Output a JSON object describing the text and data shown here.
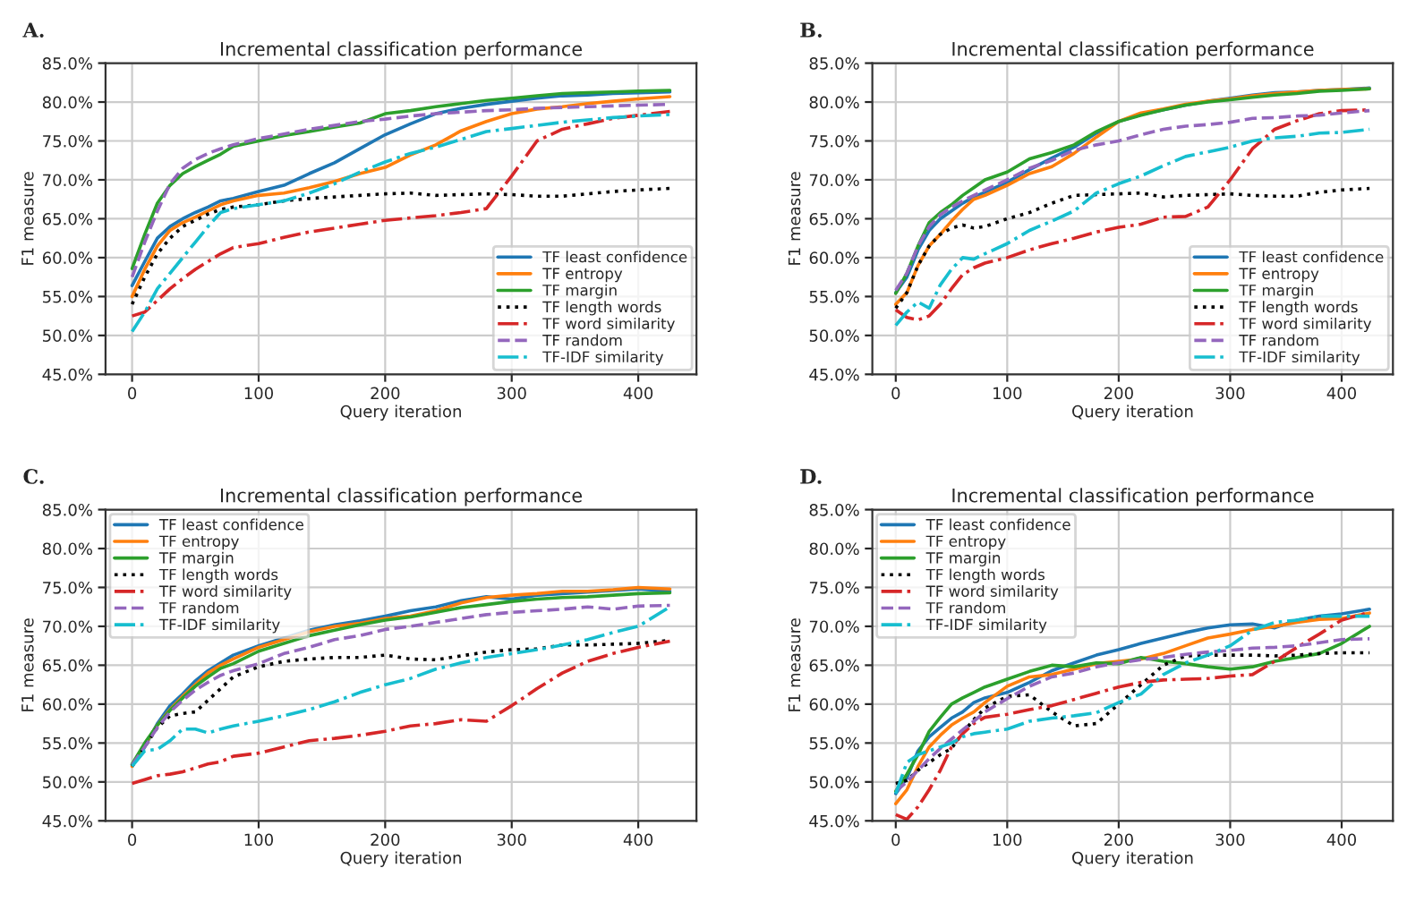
{
  "chart_data": [
    {
      "type": "line",
      "title": "Incremental classification performance",
      "xlabel": "Query iteration",
      "ylabel": "F1 measure",
      "annotations": [
        "A."
      ],
      "legend": "bottom right",
      "grid": true,
      "xlim": [
        -21,
        446
      ],
      "xticks": [
        0,
        100,
        200,
        300,
        400
      ],
      "ylim": [
        45,
        85
      ],
      "yticks": [
        {
          "value": 45,
          "label": "45.0%"
        },
        {
          "value": 50,
          "label": "50.0%"
        },
        {
          "value": 55,
          "label": "55.0%"
        },
        {
          "value": 60,
          "label": "60.0%"
        },
        {
          "value": 65,
          "label": "65.0%"
        },
        {
          "value": 70,
          "label": "70.0%"
        },
        {
          "value": 75,
          "label": "75.0%"
        },
        {
          "value": 80,
          "label": "80.0%"
        },
        {
          "value": 85,
          "label": "85.0%"
        }
      ],
      "x": [
        0,
        10,
        20,
        30,
        40,
        50,
        60,
        70,
        80,
        100,
        120,
        140,
        160,
        180,
        200,
        220,
        240,
        260,
        280,
        300,
        320,
        340,
        360,
        380,
        400,
        425
      ],
      "series": [
        {
          "name": "TF least confidence",
          "color": "#1f77b4",
          "line_style": "solid",
          "values": [
            56.4,
            59.5,
            62.5,
            64,
            65,
            65.8,
            66.5,
            67.3,
            67.6,
            68.5,
            69.3,
            70.8,
            72.2,
            74,
            75.8,
            77.2,
            78.5,
            79.2,
            79.7,
            80.1,
            80.5,
            80.8,
            80.9,
            81.1,
            81.2,
            81.3
          ]
        },
        {
          "name": "TF entropy",
          "color": "#ff7f0e",
          "line_style": "solid",
          "values": [
            55,
            58.5,
            61.5,
            63.5,
            64.5,
            65.2,
            66,
            66.8,
            67.3,
            68,
            68.3,
            69,
            69.8,
            70.8,
            71.6,
            73.2,
            74.5,
            76.3,
            77.5,
            78.5,
            79.1,
            79.4,
            79.8,
            80.1,
            80.4,
            80.7
          ]
        },
        {
          "name": "TF margin",
          "color": "#2ca02c",
          "line_style": "solid",
          "values": [
            58.6,
            63,
            67,
            69.3,
            70.8,
            71.7,
            72.5,
            73.3,
            74.3,
            75,
            75.7,
            76.2,
            76.8,
            77.3,
            78.5,
            78.9,
            79.4,
            79.8,
            80.2,
            80.5,
            80.8,
            81.1,
            81.2,
            81.3,
            81.4,
            81.5
          ]
        },
        {
          "name": "TF length words",
          "color": "#000000",
          "line_style": "dotted",
          "values": [
            54,
            57.5,
            60.5,
            62.5,
            64,
            64.8,
            65.6,
            66.2,
            66.5,
            66.8,
            67.3,
            67.6,
            67.8,
            68,
            68.2,
            68.3,
            68,
            68.1,
            68.2,
            68.1,
            67.9,
            67.9,
            68.2,
            68.5,
            68.7,
            68.9
          ]
        },
        {
          "name": "TF word similarity",
          "color": "#d62728",
          "line_style": "dashdot",
          "values": [
            52.5,
            53,
            54.5,
            56,
            57.3,
            58.5,
            59.5,
            60.5,
            61.3,
            61.8,
            62.6,
            63.3,
            63.8,
            64.3,
            64.8,
            65.1,
            65.4,
            65.8,
            66.3,
            70.5,
            75,
            76.5,
            77.2,
            77.9,
            78.3,
            78.8
          ]
        },
        {
          "name": "TF random",
          "color": "#9467bd",
          "line_style": "dashed",
          "values": [
            57.5,
            62,
            66,
            69.5,
            71.5,
            72.6,
            73.4,
            74,
            74.5,
            75.3,
            75.9,
            76.5,
            77,
            77.5,
            77.8,
            78.2,
            78.5,
            78.7,
            78.9,
            79,
            79.2,
            79.3,
            79.4,
            79.5,
            79.6,
            79.7
          ]
        },
        {
          "name": "TF-IDF similarity",
          "color": "#17becf",
          "line_style": "dashdot",
          "values": [
            50.5,
            53,
            56,
            58,
            60,
            62,
            64,
            65.8,
            66.3,
            66.8,
            67.3,
            68.3,
            69.5,
            71,
            72.3,
            73.4,
            74.2,
            75.2,
            76.2,
            76.6,
            77,
            77.4,
            77.7,
            78,
            78.2,
            78.4
          ]
        }
      ]
    },
    {
      "type": "line",
      "title": "Incremental classification performance",
      "xlabel": "Query iteration",
      "ylabel": "F1 measure",
      "annotations": [
        "B."
      ],
      "legend": "bottom right",
      "grid": true,
      "xlim": [
        -21,
        446
      ],
      "xticks": [
        0,
        100,
        200,
        300,
        400
      ],
      "ylim": [
        45,
        85
      ],
      "yticks": [
        {
          "value": 45,
          "label": "45.0%"
        },
        {
          "value": 50,
          "label": "50.0%"
        },
        {
          "value": 55,
          "label": "55.0%"
        },
        {
          "value": 60,
          "label": "60.0%"
        },
        {
          "value": 65,
          "label": "65.0%"
        },
        {
          "value": 70,
          "label": "70.0%"
        },
        {
          "value": 75,
          "label": "75.0%"
        },
        {
          "value": 80,
          "label": "80.0%"
        },
        {
          "value": 85,
          "label": "85.0%"
        }
      ],
      "x": [
        0,
        10,
        20,
        30,
        40,
        50,
        60,
        70,
        80,
        100,
        120,
        140,
        160,
        180,
        200,
        220,
        240,
        260,
        280,
        300,
        320,
        340,
        360,
        380,
        400,
        425
      ],
      "series": [
        {
          "name": "TF least confidence",
          "color": "#1f77b4",
          "line_style": "solid",
          "values": [
            55.5,
            57.5,
            61,
            63.5,
            65,
            66,
            67,
            67.8,
            68.4,
            69.7,
            71.3,
            72.8,
            74.2,
            76,
            77.5,
            78.4,
            79,
            79.6,
            80.1,
            80.5,
            80.9,
            81.2,
            81.3,
            81.5,
            81.6,
            81.8
          ]
        },
        {
          "name": "TF entropy",
          "color": "#ff7f0e",
          "line_style": "solid",
          "values": [
            54,
            55.5,
            59,
            61.5,
            63,
            64.7,
            66.2,
            67.5,
            68,
            69.3,
            70.8,
            71.7,
            73.4,
            75.5,
            77.5,
            78.6,
            79.1,
            79.7,
            80.1,
            80.4,
            80.8,
            81.1,
            81.3,
            81.5,
            81.6,
            81.7
          ]
        },
        {
          "name": "TF margin",
          "color": "#2ca02c",
          "line_style": "solid",
          "values": [
            55.4,
            58,
            61.5,
            64.5,
            65.8,
            66.8,
            68,
            69,
            70,
            71,
            72.7,
            73.5,
            74.5,
            76.2,
            77.5,
            78.3,
            79,
            79.6,
            80,
            80.3,
            80.6,
            80.9,
            81.1,
            81.4,
            81.5,
            81.7
          ]
        },
        {
          "name": "TF length words",
          "color": "#000000",
          "line_style": "dotted",
          "values": [
            53.5,
            55.5,
            59,
            61.5,
            63,
            63.8,
            64.2,
            63.8,
            64,
            65,
            65.8,
            67,
            68,
            68.1,
            68.2,
            68.3,
            67.8,
            68,
            68.1,
            68.2,
            68,
            67.9,
            67.9,
            68.4,
            68.7,
            68.9
          ]
        },
        {
          "name": "TF word similarity",
          "color": "#d62728",
          "line_style": "dashdot",
          "values": [
            53.3,
            52.3,
            52,
            52.5,
            54,
            56,
            57.8,
            58.7,
            59.3,
            60,
            61,
            61.8,
            62.5,
            63.3,
            63.9,
            64.3,
            65.2,
            65.3,
            66.5,
            70,
            74,
            76.5,
            77.6,
            78.5,
            78.9,
            79
          ]
        },
        {
          "name": "TF random",
          "color": "#9467bd",
          "line_style": "dashed",
          "values": [
            55.8,
            58,
            61.5,
            64,
            65.5,
            66.5,
            67.3,
            68,
            68.7,
            70,
            71.5,
            72.5,
            73.8,
            74.5,
            75,
            75.8,
            76.5,
            76.9,
            77.1,
            77.4,
            77.9,
            78,
            78.2,
            78.3,
            78.6,
            78.9
          ]
        },
        {
          "name": "TF-IDF similarity",
          "color": "#17becf",
          "line_style": "dashdot",
          "values": [
            51.3,
            53,
            54.3,
            53.5,
            56.5,
            58.5,
            60,
            59.8,
            60.5,
            61.8,
            63.5,
            64.7,
            66,
            68.3,
            69.5,
            70.5,
            71.8,
            73,
            73.6,
            74.2,
            75,
            75.4,
            75.6,
            76,
            76.1,
            76.5
          ]
        }
      ]
    },
    {
      "type": "line",
      "title": "Incremental classification performance",
      "xlabel": "Query iteration",
      "ylabel": "F1 measure",
      "annotations": [
        "C."
      ],
      "legend": "top left",
      "grid": true,
      "xlim": [
        -21,
        446
      ],
      "xticks": [
        0,
        100,
        200,
        300,
        400
      ],
      "ylim": [
        45,
        85
      ],
      "yticks": [
        {
          "value": 45,
          "label": "45.0%"
        },
        {
          "value": 50,
          "label": "50.0%"
        },
        {
          "value": 55,
          "label": "55.0%"
        },
        {
          "value": 60,
          "label": "60.0%"
        },
        {
          "value": 65,
          "label": "65.0%"
        },
        {
          "value": 70,
          "label": "70.0%"
        },
        {
          "value": 75,
          "label": "75.0%"
        },
        {
          "value": 80,
          "label": "80.0%"
        },
        {
          "value": 85,
          "label": "85.0%"
        }
      ],
      "x": [
        0,
        10,
        20,
        30,
        40,
        50,
        60,
        70,
        80,
        100,
        120,
        140,
        160,
        180,
        200,
        220,
        240,
        260,
        280,
        300,
        320,
        340,
        360,
        380,
        400,
        425
      ],
      "series": [
        {
          "name": "TF least confidence",
          "color": "#1f77b4",
          "line_style": "solid",
          "values": [
            52.2,
            54.5,
            57.5,
            59.8,
            61.3,
            63,
            64.3,
            65.3,
            66.3,
            67.5,
            68.5,
            69.5,
            70.2,
            70.7,
            71.3,
            72,
            72.5,
            73.3,
            73.8,
            73.5,
            74,
            74.2,
            74.4,
            74.6,
            74.8,
            74.5
          ]
        },
        {
          "name": "TF entropy",
          "color": "#ff7f0e",
          "line_style": "solid",
          "values": [
            52,
            54.8,
            57.3,
            59.3,
            61,
            62.5,
            64,
            65,
            65.8,
            67.3,
            68.3,
            69.3,
            70,
            70.4,
            71,
            71.3,
            72,
            73,
            73.7,
            74,
            74.2,
            74.5,
            74.5,
            74.7,
            75,
            74.8
          ]
        },
        {
          "name": "TF margin",
          "color": "#2ca02c",
          "line_style": "solid",
          "values": [
            52.3,
            55,
            57.3,
            59.2,
            60.8,
            62.3,
            63.5,
            64.6,
            65.2,
            66.8,
            67.8,
            68.8,
            69.5,
            70.2,
            70.8,
            71.2,
            71.8,
            72.4,
            72.8,
            73.2,
            73.5,
            73.7,
            73.8,
            74,
            74.2,
            74.3
          ]
        },
        {
          "name": "TF length words",
          "color": "#000000",
          "line_style": "dotted",
          "values": [
            52,
            54.5,
            57,
            58.5,
            58.8,
            59,
            60.5,
            62,
            63.5,
            64.8,
            65.5,
            65.8,
            66,
            66,
            66.3,
            65.8,
            65.7,
            66.2,
            66.7,
            67,
            67.1,
            67.6,
            67.6,
            67.7,
            67.8,
            68.2
          ]
        },
        {
          "name": "TF word similarity",
          "color": "#d62728",
          "line_style": "dashdot",
          "values": [
            49.8,
            50.3,
            50.8,
            51,
            51.3,
            51.8,
            52.3,
            52.6,
            53.3,
            53.7,
            54.5,
            55.3,
            55.6,
            56,
            56.5,
            57.2,
            57.5,
            58,
            57.8,
            59.8,
            62,
            64,
            65.5,
            66.5,
            67.3,
            68.1
          ]
        },
        {
          "name": "TF random",
          "color": "#9467bd",
          "line_style": "dashed",
          "values": [
            52.2,
            54.5,
            57,
            59,
            60.5,
            61.8,
            62.8,
            63.7,
            64.3,
            65.2,
            66.5,
            67.3,
            68.3,
            68.8,
            69.6,
            70,
            70.5,
            71,
            71.5,
            71.8,
            72,
            72.2,
            72.5,
            72.2,
            72.6,
            72.7
          ]
        },
        {
          "name": "TF-IDF similarity",
          "color": "#17becf",
          "line_style": "dashdot",
          "values": [
            52,
            54,
            54.2,
            55.3,
            56.8,
            56.8,
            56.3,
            56.8,
            57.2,
            57.8,
            58.5,
            59.3,
            60.3,
            61.5,
            62.5,
            63.3,
            64.5,
            65.3,
            66,
            66.5,
            67,
            67.6,
            68.3,
            69.2,
            70,
            72.5
          ]
        }
      ]
    },
    {
      "type": "line",
      "title": "Incremental classification performance",
      "xlabel": "Query iteration",
      "ylabel": "F1 measure",
      "annotations": [
        "D."
      ],
      "legend": "top left",
      "grid": true,
      "xlim": [
        -21,
        446
      ],
      "xticks": [
        0,
        100,
        200,
        300,
        400
      ],
      "ylim": [
        45,
        85
      ],
      "yticks": [
        {
          "value": 45,
          "label": "45.0%"
        },
        {
          "value": 50,
          "label": "50.0%"
        },
        {
          "value": 55,
          "label": "55.0%"
        },
        {
          "value": 60,
          "label": "60.0%"
        },
        {
          "value": 65,
          "label": "65.0%"
        },
        {
          "value": 70,
          "label": "70.0%"
        },
        {
          "value": 75,
          "label": "75.0%"
        },
        {
          "value": 80,
          "label": "80.0%"
        },
        {
          "value": 85,
          "label": "85.0%"
        }
      ],
      "x": [
        0,
        10,
        20,
        30,
        40,
        50,
        60,
        70,
        80,
        100,
        120,
        140,
        160,
        180,
        200,
        220,
        240,
        260,
        280,
        300,
        320,
        340,
        360,
        380,
        400,
        425
      ],
      "series": [
        {
          "name": "TF least confidence",
          "color": "#1f77b4",
          "line_style": "solid",
          "values": [
            48.5,
            50.5,
            54,
            55.8,
            57,
            58.2,
            59,
            60.2,
            60.8,
            61.5,
            62.8,
            64.3,
            65.3,
            66.3,
            67,
            67.8,
            68.5,
            69.2,
            69.8,
            70.2,
            70.3,
            69.8,
            70.8,
            71.3,
            71.6,
            72.2
          ]
        },
        {
          "name": "TF entropy",
          "color": "#ff7f0e",
          "line_style": "solid",
          "values": [
            47.2,
            49,
            52,
            54.5,
            56,
            57.3,
            58.2,
            59,
            60.2,
            62.3,
            63.5,
            63.8,
            64.5,
            65.2,
            65.5,
            65.8,
            66.5,
            67.5,
            68.5,
            69,
            69.6,
            70,
            70.5,
            70.9,
            71,
            71.7
          ]
        },
        {
          "name": "TF margin",
          "color": "#2ca02c",
          "line_style": "solid",
          "values": [
            48.8,
            51,
            53.5,
            56.5,
            58.3,
            60,
            60.8,
            61.5,
            62.2,
            63.2,
            64.2,
            65,
            64.8,
            65.3,
            65.2,
            66,
            65.5,
            65.2,
            64.8,
            64.5,
            64.8,
            65.5,
            66,
            66.5,
            67.8,
            70
          ]
        },
        {
          "name": "TF length words",
          "color": "#000000",
          "line_style": "dotted",
          "values": [
            49.8,
            50.2,
            51.5,
            52.5,
            53.5,
            54.3,
            56.3,
            58,
            59.5,
            61,
            61.2,
            59,
            57.2,
            57.5,
            60,
            62.5,
            65,
            66.2,
            66.3,
            66.3,
            66.3,
            66.2,
            66.3,
            66.5,
            66.6,
            66.6
          ]
        },
        {
          "name": "TF word similarity",
          "color": "#d62728",
          "line_style": "dashdot",
          "values": [
            45.8,
            45.2,
            46.8,
            49,
            51.5,
            54.5,
            56.2,
            57.5,
            58.3,
            58.7,
            59.3,
            59.8,
            60.6,
            61.4,
            62.2,
            62.8,
            63.1,
            63.2,
            63.3,
            63.6,
            63.8,
            65.5,
            67.3,
            69,
            70.8,
            71.8
          ]
        },
        {
          "name": "TF random",
          "color": "#9467bd",
          "line_style": "dashed",
          "values": [
            48.8,
            50,
            51.5,
            53,
            54.3,
            55.5,
            56.7,
            57.8,
            59,
            60.7,
            62.3,
            63.5,
            64,
            64.8,
            65.3,
            65.7,
            66,
            66.4,
            66.7,
            66.9,
            67.2,
            67.3,
            67.5,
            67.9,
            68.3,
            68.4
          ]
        },
        {
          "name": "TF-IDF similarity",
          "color": "#17becf",
          "line_style": "dashdot",
          "values": [
            48.5,
            52.5,
            53.5,
            54,
            54.5,
            55,
            55.8,
            56.2,
            56.4,
            56.8,
            57.8,
            58.2,
            58.5,
            58.9,
            60.2,
            61.3,
            63.8,
            65.3,
            66.3,
            67.5,
            69.5,
            70.5,
            70.8,
            71.3,
            71.3,
            71.3
          ]
        }
      ]
    }
  ]
}
